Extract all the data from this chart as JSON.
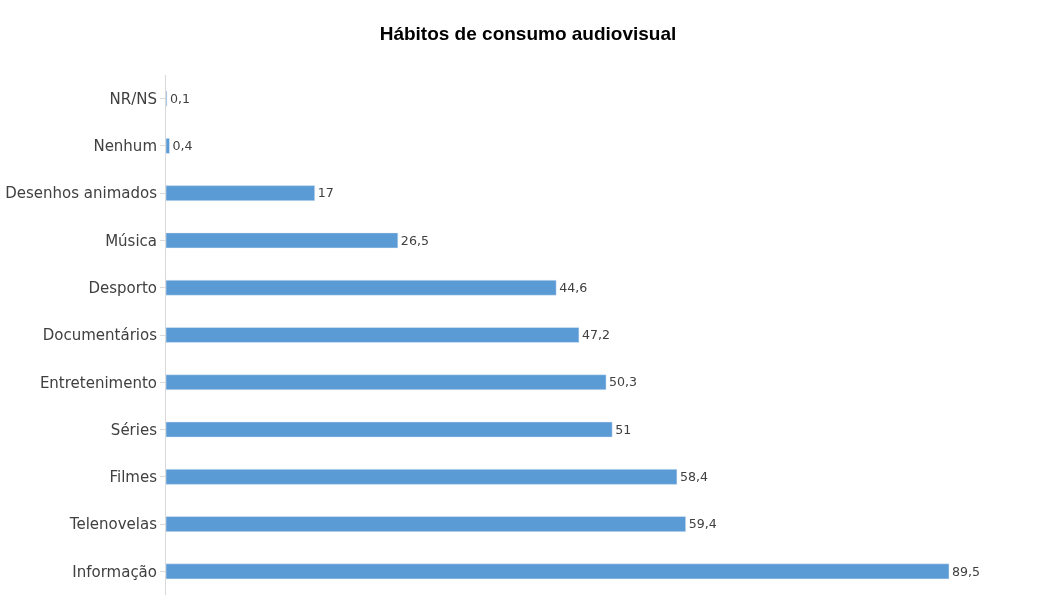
{
  "chart_data": {
    "type": "bar",
    "orientation": "horizontal",
    "title": "Hábitos de consumo audiovisual",
    "categories": [
      "NR/NS",
      "Nenhum",
      "Desenhos animados",
      "Música",
      "Desporto",
      "Documentários",
      "Entretenimento",
      "Séries",
      "Filmes",
      "Telenovelas",
      "Informação"
    ],
    "values": [
      0.1,
      0.4,
      17,
      26.5,
      44.6,
      47.2,
      50.3,
      51,
      58.4,
      59.4,
      89.5
    ],
    "value_labels": [
      "0,1",
      "0,4",
      "17",
      "26,5",
      "44,6",
      "47,2",
      "50,3",
      "51",
      "58,4",
      "59,4",
      "89,5"
    ],
    "color": "#5b9bd5"
  }
}
